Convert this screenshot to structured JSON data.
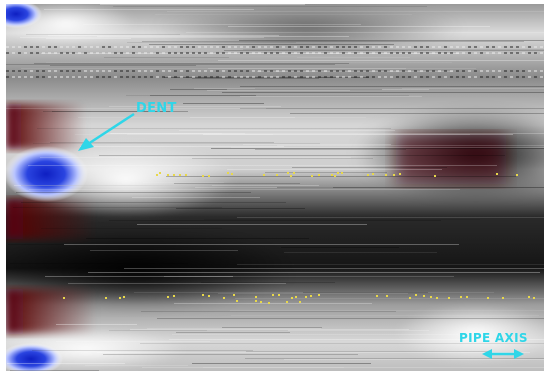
{
  "annotations": {
    "dent_label": "DENT",
    "pipe_axis_label": "PIPE AXIS"
  },
  "colors": {
    "annotation": "#2fd6e8",
    "dent_core": "#1a2fd0",
    "dent_halo": "#ffffff",
    "bulge": "#5a0a0c",
    "background_dark": "#0a0a0a",
    "background_light": "#e6e6e6",
    "speckle": "#e8d84a"
  },
  "icons": [
    "dent-pointer-arrow-icon",
    "double-arrow-icon"
  ]
}
